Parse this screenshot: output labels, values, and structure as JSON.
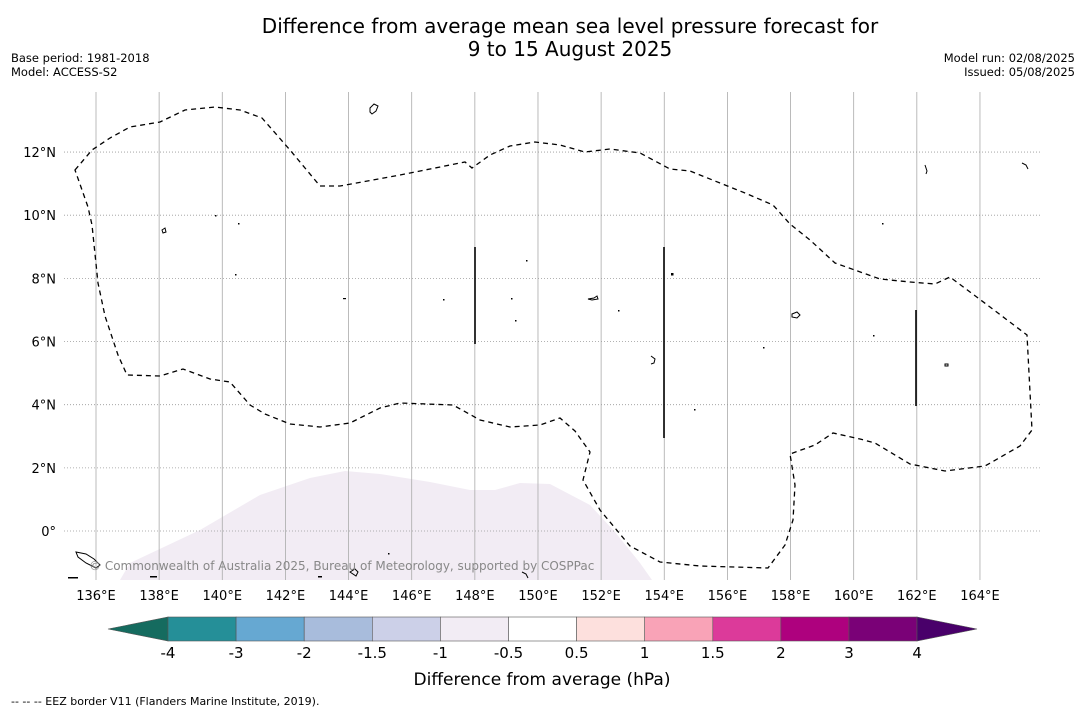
{
  "title": {
    "line1": "Difference from average mean sea level pressure forecast for",
    "line2": "9 to 15 August 2025"
  },
  "meta": {
    "base_period": "Base period: 1981-2018",
    "model": "Model: ACCESS-S2",
    "model_run": "Model run: 02/08/2025",
    "issued": "Issued: 05/08/2025"
  },
  "map": {
    "lon_range": [
      135.0,
      166.0
    ],
    "lat_range": [
      -1.5,
      14.0
    ],
    "lon_ticks": [
      136,
      138,
      140,
      142,
      144,
      146,
      148,
      150,
      152,
      154,
      156,
      158,
      160,
      162,
      164
    ],
    "lon_tick_labels": [
      "136°E",
      "138°E",
      "140°E",
      "142°E",
      "144°E",
      "146°E",
      "148°E",
      "150°E",
      "152°E",
      "154°E",
      "156°E",
      "158°E",
      "160°E",
      "162°E",
      "164°E"
    ],
    "lat_ticks": [
      0,
      2,
      4,
      6,
      8,
      10,
      12
    ],
    "lat_tick_labels": [
      "0°",
      "2°N",
      "4°N",
      "6°N",
      "8°N",
      "10°N",
      "12°N"
    ],
    "grid": "dotted",
    "copyright": "© Commonwealth of Australia 2025, Bureau of Meteorology, supported by COSPPac",
    "anomaly_region_color": "#f2ecf4"
  },
  "colorbar": {
    "title": "Difference from average (hPa)",
    "tick_labels": [
      "-4",
      "-3",
      "-2",
      "-1.5",
      "-1",
      "-0.5",
      "0.5",
      "1",
      "1.5",
      "2",
      "3",
      "4"
    ],
    "colors": [
      "#258f98",
      "#66a8d2",
      "#a8bcdc",
      "#ccd0e8",
      "#f2ecf4",
      "#ffffff",
      "#fde0dd",
      "#f9a3b7",
      "#dc3a9a",
      "#ae017e",
      "#7a0177"
    ],
    "under_color": "#156b5f",
    "over_color": "#49006a"
  },
  "eez_note": "--  --  -- EEZ border V11 (Flanders Marine Institute, 2019)."
}
